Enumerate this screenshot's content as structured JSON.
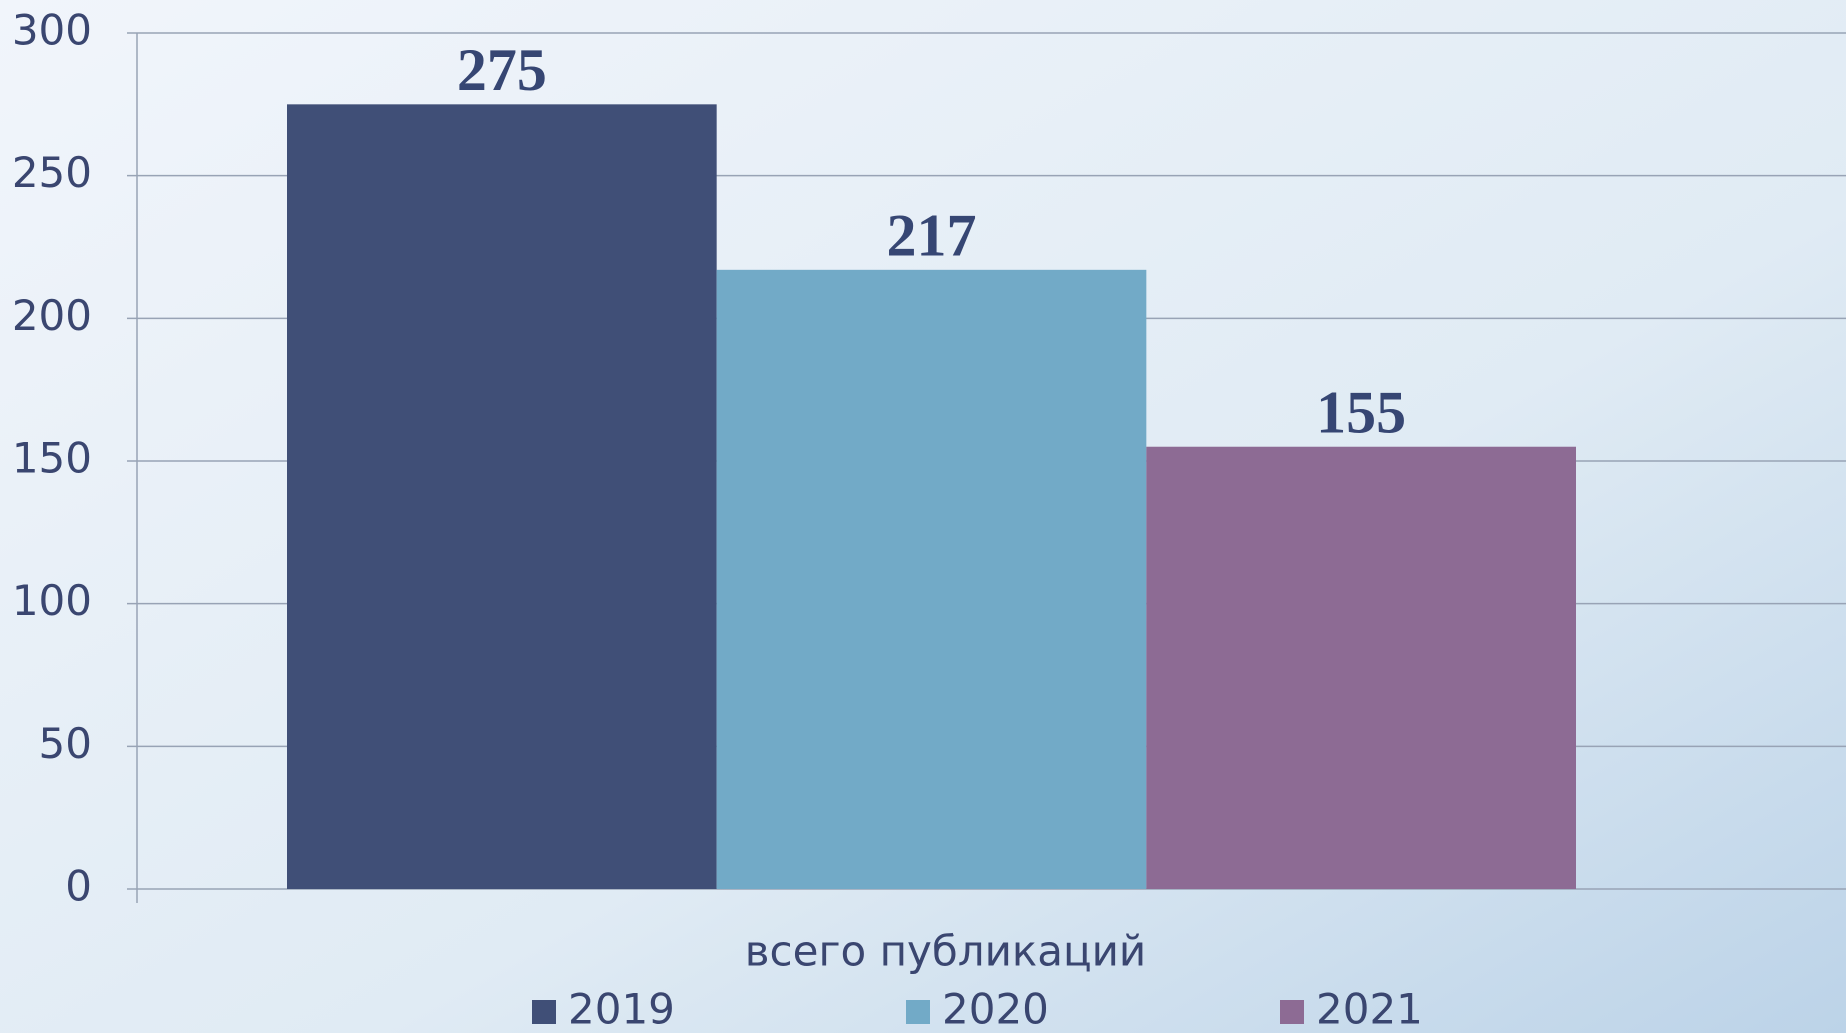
{
  "chart_data": {
    "type": "bar",
    "categories": [
      "всего публикаций"
    ],
    "series": [
      {
        "name": "2019",
        "color": "#404f77",
        "values": [
          275
        ]
      },
      {
        "name": "2020",
        "color": "#72aac7",
        "values": [
          217
        ]
      },
      {
        "name": "2021",
        "color": "#8d6b94",
        "values": [
          155
        ]
      }
    ],
    "ylim": [
      0,
      300
    ],
    "yticks": [
      0,
      50,
      100,
      150,
      200,
      250,
      300
    ],
    "grid": true,
    "legend": "bottom"
  }
}
